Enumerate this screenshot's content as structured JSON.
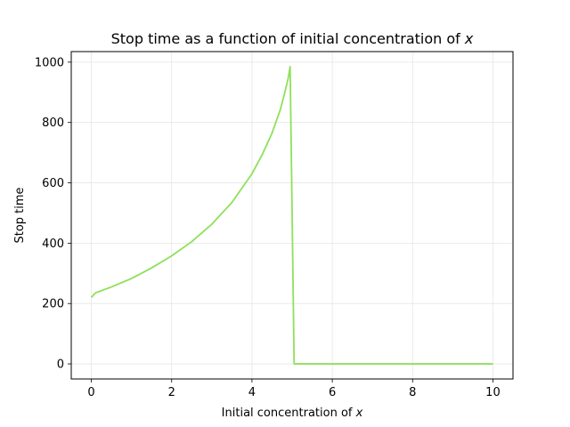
{
  "chart_data": {
    "type": "line",
    "title_prefix": "Stop time as a function of initial concentration of ",
    "title_var": "x",
    "xlabel_prefix": "Initial concentration of ",
    "xlabel_var": "x",
    "ylabel": "Stop time",
    "xlim": [
      -0.5,
      10.5
    ],
    "ylim": [
      -50,
      1035
    ],
    "xticks": [
      0,
      2,
      4,
      6,
      8,
      10
    ],
    "yticks": [
      0,
      200,
      400,
      600,
      800,
      1000
    ],
    "grid": true,
    "line_color": "#8fe05a",
    "series": [
      {
        "x": [
          0,
          0.05,
          0.1,
          0.15,
          0.2,
          0.5,
          1.0,
          1.5,
          2.0,
          2.5,
          3.0,
          3.5,
          4.0,
          4.25,
          4.5,
          4.7,
          4.8,
          4.9,
          4.95,
          5.0,
          5.05,
          5.5,
          6,
          7,
          8,
          9,
          10
        ],
        "y": [
          220,
          228,
          235,
          238,
          240,
          255,
          283,
          318,
          358,
          405,
          463,
          535,
          630,
          692,
          765,
          840,
          890,
          945,
          985,
          500,
          0,
          0,
          0,
          0,
          0,
          0,
          0
        ]
      }
    ]
  }
}
